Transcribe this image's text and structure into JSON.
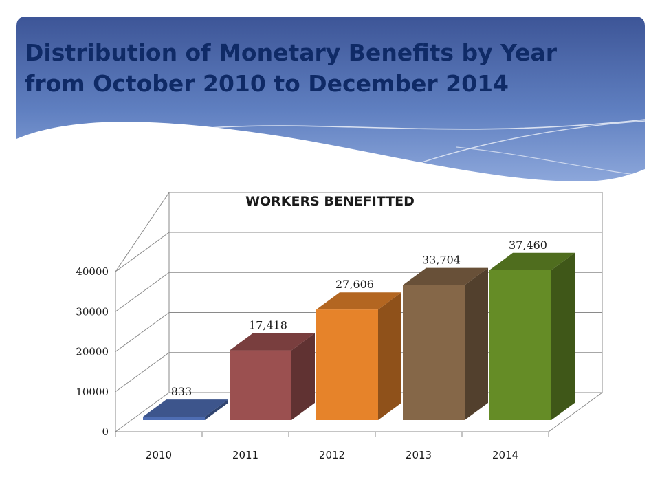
{
  "slide": {
    "title_line1": "Distribution of Monetary Benefits by Year",
    "title_line2": "from October 2010 to December 2014",
    "header_color": "#4a63a8"
  },
  "chart_data": {
    "type": "bar",
    "title": "WORKERS BENEFITTED",
    "categories": [
      "2010",
      "2011",
      "2012",
      "2013",
      "2014"
    ],
    "values": [
      833,
      17418,
      27606,
      33704,
      37460
    ],
    "value_labels": [
      "833",
      "17,418",
      "27,606",
      "33,704",
      "37,460"
    ],
    "yticks": [
      "0",
      "10000",
      "20000",
      "30000",
      "40000"
    ],
    "ylim": [
      0,
      40000
    ],
    "grid": true,
    "legend": "none",
    "bar_colors": [
      "#4e6db3",
      "#9b5050",
      "#e6832a",
      "#856748",
      "#658c26"
    ]
  }
}
